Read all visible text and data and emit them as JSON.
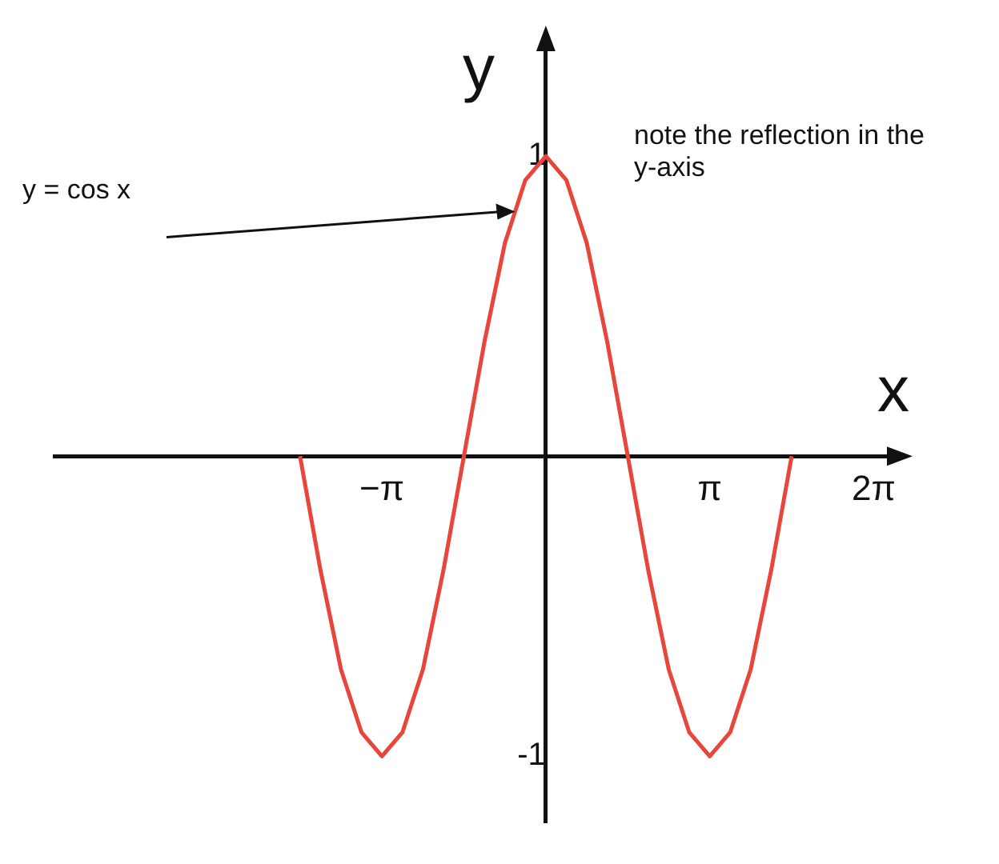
{
  "chart_data": {
    "type": "line",
    "xlabel": "x",
    "ylabel": "y",
    "x": [
      -4.712,
      -4.32,
      -3.927,
      -3.534,
      -3.142,
      -2.749,
      -2.356,
      -1.963,
      -1.571,
      -1.178,
      -0.785,
      -0.393,
      0,
      0.393,
      0.785,
      1.178,
      1.571,
      1.963,
      2.356,
      2.749,
      3.142,
      3.534,
      3.927,
      4.32,
      4.712
    ],
    "series": [
      {
        "color": "#e8463a",
        "values": [
          0,
          -0.38,
          -0.71,
          -0.92,
          -1,
          -0.92,
          -0.71,
          -0.38,
          0,
          0.38,
          0.71,
          0.92,
          1,
          0.92,
          0.71,
          0.38,
          0,
          -0.38,
          -0.71,
          -0.92,
          -1,
          -0.92,
          -0.71,
          -0.38,
          0
        ]
      }
    ],
    "xlim": [
      -9.42,
      6.6
    ],
    "ylim": [
      -1.22,
      1.36
    ],
    "xticks": [
      {
        "value": -3.142,
        "label": "−π"
      },
      {
        "value": 3.142,
        "label": "π"
      },
      {
        "value": 6.283,
        "label": "2π"
      }
    ],
    "yticks": [
      1,
      -1
    ],
    "annotations": [
      "y = cos x",
      "note the reflection in the y-axis"
    ],
    "grid": false,
    "legend": false,
    "marker": "none",
    "line_style": "solid"
  }
}
